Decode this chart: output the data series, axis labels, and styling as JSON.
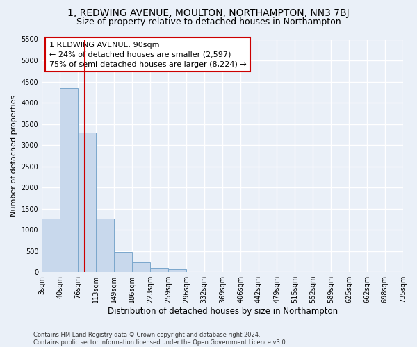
{
  "title1": "1, REDWING AVENUE, MOULTON, NORTHAMPTON, NN3 7BJ",
  "title2": "Size of property relative to detached houses in Northampton",
  "xlabel": "Distribution of detached houses by size in Northampton",
  "ylabel": "Number of detached properties",
  "footnote": "Contains HM Land Registry data © Crown copyright and database right 2024.\nContains public sector information licensed under the Open Government Licence v3.0.",
  "bin_edges": [
    3,
    40,
    76,
    113,
    149,
    186,
    223,
    259,
    296,
    332,
    369,
    406,
    442,
    479,
    515,
    552,
    589,
    625,
    662,
    698,
    735
  ],
  "bar_heights": [
    1270,
    4350,
    3300,
    1270,
    475,
    225,
    100,
    75,
    0,
    0,
    0,
    0,
    0,
    0,
    0,
    0,
    0,
    0,
    0,
    0
  ],
  "bar_color": "#c8d8ec",
  "bar_edge_color": "#7ba7cc",
  "property_size": 90,
  "property_line_color": "#cc0000",
  "annotation_text": "1 REDWING AVENUE: 90sqm\n← 24% of detached houses are smaller (2,597)\n75% of semi-detached houses are larger (8,224) →",
  "annotation_box_color": "#ffffff",
  "annotation_box_edge": "#cc0000",
  "ylim": [
    0,
    5500
  ],
  "yticks": [
    0,
    500,
    1000,
    1500,
    2000,
    2500,
    3000,
    3500,
    4000,
    4500,
    5000,
    5500
  ],
  "xtick_labels": [
    "3sqm",
    "40sqm",
    "76sqm",
    "113sqm",
    "149sqm",
    "186sqm",
    "223sqm",
    "259sqm",
    "296sqm",
    "332sqm",
    "369sqm",
    "406sqm",
    "442sqm",
    "479sqm",
    "515sqm",
    "552sqm",
    "589sqm",
    "625sqm",
    "662sqm",
    "698sqm",
    "735sqm"
  ],
  "xtick_positions": [
    3,
    40,
    76,
    113,
    149,
    186,
    223,
    259,
    296,
    332,
    369,
    406,
    442,
    479,
    515,
    552,
    589,
    625,
    662,
    698,
    735
  ],
  "bg_color": "#eaf0f8",
  "plot_bg_color": "#eaf0f8",
  "grid_color": "#ffffff",
  "title1_fontsize": 10,
  "title2_fontsize": 9,
  "tick_fontsize": 7,
  "xlabel_fontsize": 8.5,
  "ylabel_fontsize": 8,
  "annot_fontsize": 8,
  "footnote_fontsize": 6
}
